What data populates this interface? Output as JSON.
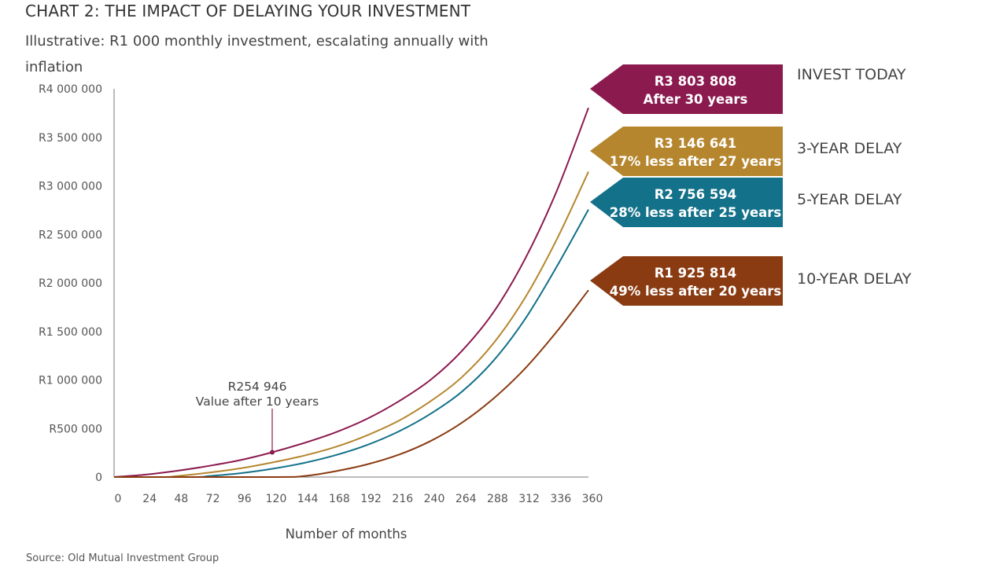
{
  "header": {
    "title": "CHART 2: THE IMPACT OF DELAYING YOUR INVESTMENT",
    "subtitle": "Illustrative: R1 000 monthly investment, escalating annually with inflation"
  },
  "source": "Source: Old Mutual Investment Group",
  "chart_data": {
    "type": "line",
    "title": "CHART 2: THE IMPACT OF DELAYING YOUR INVESTMENT",
    "subtitle": "Illustrative: R1 000 monthly investment, escalating annually with inflation",
    "xlabel": "Number of months",
    "ylabel": "",
    "xlim": [
      0,
      360
    ],
    "ylim": [
      0,
      4000000
    ],
    "x_ticks": [
      0,
      24,
      48,
      72,
      96,
      120,
      144,
      168,
      192,
      216,
      240,
      264,
      288,
      312,
      336,
      360
    ],
    "x_tick_labels": [
      "0",
      "24",
      "48",
      "72",
      "96",
      "120",
      "144",
      "168",
      "192",
      "216",
      "240",
      "264",
      "288",
      "312",
      "336",
      "360"
    ],
    "y_ticks": [
      0,
      500000,
      1000000,
      1500000,
      2000000,
      2500000,
      3000000,
      3500000,
      4000000
    ],
    "y_tick_labels": [
      "0",
      "R500 000",
      "R1 000 000",
      "R1 500 000",
      "R2 000 000",
      "R2 500 000",
      "R3 000 000",
      "R3 500 000",
      "R4 000 000"
    ],
    "grid": false,
    "series": [
      {
        "name": "INVEST TODAY",
        "color": "#8b1a4f",
        "start_month": 0,
        "x": [
          0,
          24,
          48,
          72,
          96,
          120,
          144,
          168,
          192,
          216,
          240,
          264,
          288,
          312,
          336,
          360
        ],
        "values": [
          0,
          25000,
          65000,
          115000,
          175000,
          254946,
          350000,
          460000,
          600000,
          780000,
          1000000,
          1300000,
          1700000,
          2250000,
          2950000,
          3803808
        ],
        "flag_value": "R3 803 808",
        "flag_note": "After 30 years"
      },
      {
        "name": "3-YEAR DELAY",
        "color": "#b5862e",
        "start_month": 36,
        "x": [
          36,
          48,
          72,
          96,
          120,
          144,
          168,
          192,
          216,
          240,
          264,
          288,
          312,
          336,
          360
        ],
        "values": [
          0,
          10000,
          45000,
          90000,
          150000,
          220000,
          310000,
          430000,
          580000,
          780000,
          1030000,
          1380000,
          1850000,
          2450000,
          3146641
        ],
        "flag_value": "R3 146 641",
        "flag_note": "17% less after 27 years"
      },
      {
        "name": "5-YEAR DELAY",
        "color": "#137189",
        "start_month": 60,
        "x": [
          60,
          72,
          96,
          120,
          144,
          168,
          192,
          216,
          240,
          264,
          288,
          312,
          336,
          360
        ],
        "values": [
          0,
          10000,
          40000,
          85000,
          145000,
          225000,
          330000,
          470000,
          650000,
          880000,
          1200000,
          1630000,
          2170000,
          2756594
        ],
        "flag_value": "R2 756 594",
        "flag_note": "28% less after 25 years"
      },
      {
        "name": "10-YEAR DELAY",
        "color": "#8a3b12",
        "start_month": 120,
        "x": [
          120,
          144,
          168,
          192,
          216,
          240,
          264,
          288,
          312,
          336,
          360
        ],
        "values": [
          0,
          10000,
          60000,
          130000,
          230000,
          370000,
          560000,
          810000,
          1120000,
          1500000,
          1925814
        ],
        "flag_value": "R1 925 814",
        "flag_note": "49% less after 20 years"
      }
    ],
    "annotations": [
      {
        "x": 120,
        "y": 254946,
        "text_line1": "R254 946",
        "text_line2": "Value after 10 years"
      }
    ]
  }
}
